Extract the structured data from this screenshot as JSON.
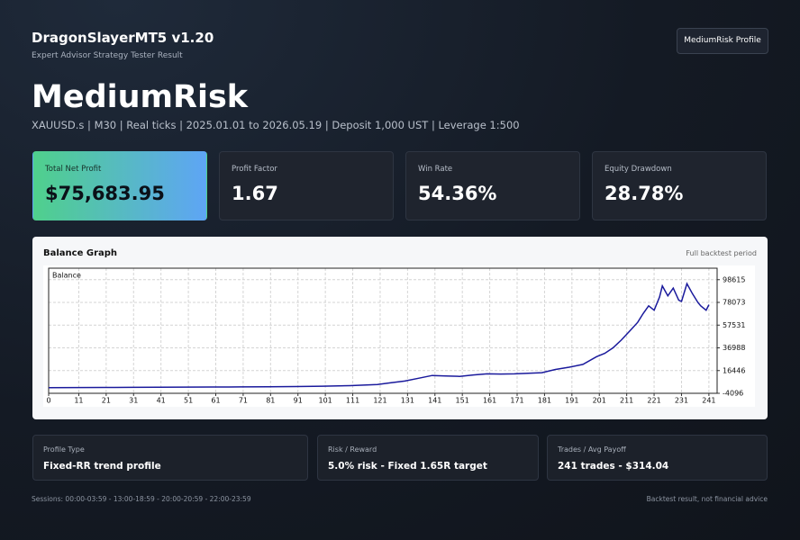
{
  "header": {
    "title": "DragonSlayerMT5 v1.20",
    "subtitle": "Expert Advisor Strategy Tester Result",
    "button": "MediumRisk Profile"
  },
  "hero": {
    "title": "MediumRisk",
    "info": "XAUUSD.s | M30 | Real ticks | 2025.01.01 to 2026.05.19 | Deposit 1,000 UST | Leverage 1:500"
  },
  "stats": [
    {
      "label": "Total Net Profit",
      "value": "$75,683.95"
    },
    {
      "label": "Profit Factor",
      "value": "1.67"
    },
    {
      "label": "Win Rate",
      "value": "54.36%"
    },
    {
      "label": "Equity Drawdown",
      "value": "28.78%"
    }
  ],
  "chart_data": {
    "type": "line",
    "title": "Balance Graph",
    "subtitle": "Full backtest period",
    "x": [
      0,
      10,
      20,
      30,
      40,
      50,
      60,
      70,
      80,
      90,
      100,
      110,
      120,
      125,
      130,
      135,
      140,
      145,
      150,
      155,
      160,
      165,
      170,
      175,
      180,
      185,
      190,
      195,
      200,
      203,
      206,
      209,
      212,
      215,
      217,
      219,
      221,
      223,
      224,
      226,
      228,
      230,
      231,
      233,
      235,
      237,
      238,
      240,
      241
    ],
    "series": [
      {
        "name": "Balance",
        "color": "#1a1a9c",
        "values": [
          1000,
          1100,
          1200,
          1300,
          1400,
          1500,
          1600,
          1700,
          1800,
          2000,
          2300,
          2800,
          3800,
          5500,
          7000,
          9500,
          12000,
          11500,
          11200,
          12500,
          13500,
          13300,
          13500,
          14000,
          14500,
          17500,
          19500,
          22000,
          29000,
          32000,
          37000,
          44000,
          52000,
          60000,
          68000,
          75000,
          71000,
          83000,
          93000,
          84000,
          91000,
          80000,
          79000,
          95000,
          86000,
          78000,
          75000,
          71000,
          76000
        ]
      }
    ],
    "xlim": [
      0,
      244
    ],
    "ylim": [
      -4096,
      109000
    ],
    "xticks": [
      0,
      11,
      21,
      31,
      41,
      51,
      61,
      71,
      81,
      91,
      101,
      111,
      121,
      131,
      141,
      151,
      161,
      171,
      181,
      191,
      201,
      211,
      221,
      231,
      241
    ],
    "yticks": [
      -4096,
      16446,
      36988,
      57531,
      78073,
      98615
    ],
    "grid": true
  },
  "details": [
    {
      "label": "Profile Type",
      "value": "Fixed-RR trend profile"
    },
    {
      "label": "Risk / Reward",
      "value": "5.0% risk - Fixed 1.65R target"
    },
    {
      "label": "Trades / Avg Payoff",
      "value": "241 trades - $314.04"
    }
  ],
  "footer": {
    "left": "Sessions: 00:00-03:59 - 13:00-18:59 - 20:00-20:59 - 22:00-23:59",
    "right": "Backtest result, not financial advice"
  }
}
